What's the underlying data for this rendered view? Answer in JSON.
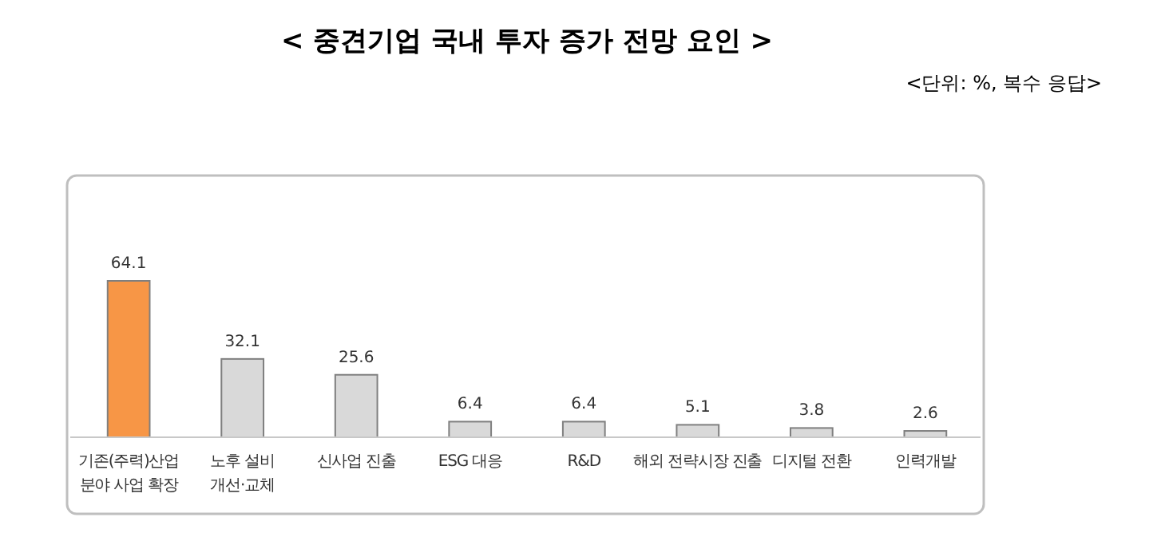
{
  "chart_data": {
    "type": "bar",
    "title": "< 중견기업 국내 투자 증가 전망 요인 >",
    "subtitle": "<단위: %, 복수 응답>",
    "categories": [
      "기존(주력)산업\n분야 사업 확장",
      "노후 설비\n개선·교체",
      "신사업 진출",
      "ESG 대응",
      "R&D",
      "해외 전략시장 진출",
      "디지털 전환",
      "인력개발"
    ],
    "values": [
      64.1,
      32.1,
      25.6,
      6.4,
      6.4,
      5.1,
      3.8,
      2.6
    ],
    "colors": [
      "#f79646",
      "#d9d9d9",
      "#d9d9d9",
      "#d9d9d9",
      "#d9d9d9",
      "#d9d9d9",
      "#d9d9d9",
      "#d9d9d9"
    ],
    "data_labels": true
  }
}
